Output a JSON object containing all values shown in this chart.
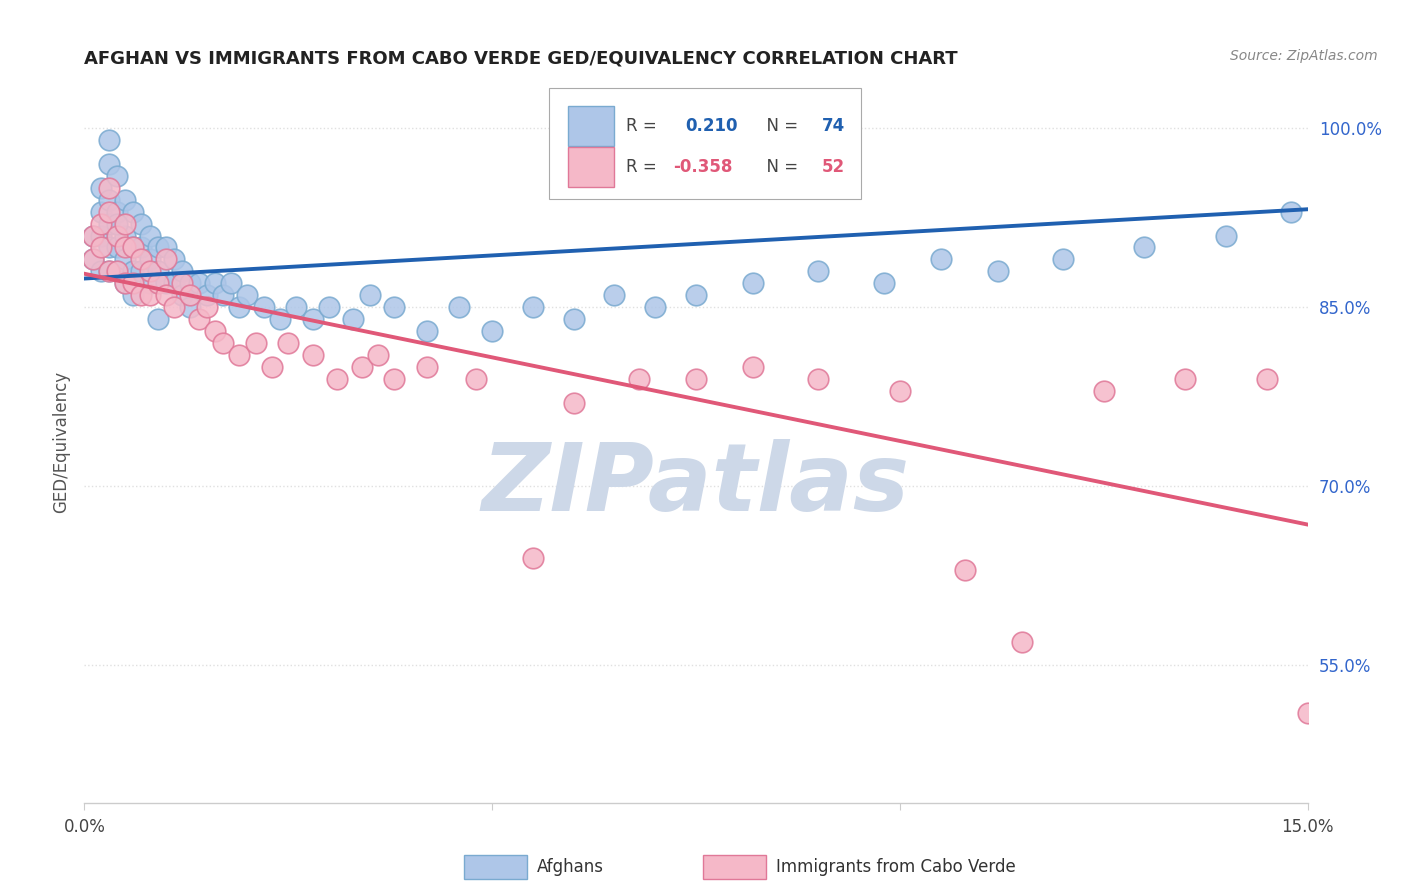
{
  "title": "AFGHAN VS IMMIGRANTS FROM CABO VERDE GED/EQUIVALENCY CORRELATION CHART",
  "source_text": "Source: ZipAtlas.com",
  "ylabel": "GED/Equivalency",
  "y_ticks": [
    "100.0%",
    "85.0%",
    "70.0%",
    "55.0%"
  ],
  "y_tick_vals": [
    1.0,
    0.85,
    0.7,
    0.55
  ],
  "x_range": [
    0.0,
    0.15
  ],
  "y_range": [
    0.435,
    1.04
  ],
  "legend_r_blue": "0.210",
  "legend_n_blue": "74",
  "legend_r_pink": "-0.358",
  "legend_n_pink": "52",
  "blue_color": "#aec6e8",
  "blue_edge_color": "#7aaad0",
  "pink_color": "#f5b8c8",
  "pink_edge_color": "#e07898",
  "blue_line_color": "#2060b0",
  "pink_line_color": "#e05878",
  "watermark_text": "ZIPatlas",
  "watermark_color": "#cdd8e8",
  "background_color": "#ffffff",
  "grid_color": "#e0e0e0",
  "title_color": "#222222",
  "source_color": "#888888",
  "tick_color": "#3366cc",
  "axis_label_color": "#555555",
  "blue_line_x": [
    0.0,
    0.15
  ],
  "blue_line_y": [
    0.874,
    0.932
  ],
  "pink_line_x": [
    0.0,
    0.15
  ],
  "pink_line_y": [
    0.878,
    0.668
  ],
  "blue_x": [
    0.001,
    0.001,
    0.002,
    0.002,
    0.002,
    0.002,
    0.003,
    0.003,
    0.003,
    0.003,
    0.003,
    0.004,
    0.004,
    0.004,
    0.004,
    0.005,
    0.005,
    0.005,
    0.005,
    0.006,
    0.006,
    0.006,
    0.007,
    0.007,
    0.007,
    0.008,
    0.008,
    0.008,
    0.009,
    0.009,
    0.01,
    0.01,
    0.011,
    0.011,
    0.012,
    0.012,
    0.013,
    0.013,
    0.014,
    0.015,
    0.016,
    0.017,
    0.018,
    0.019,
    0.02,
    0.022,
    0.024,
    0.026,
    0.028,
    0.03,
    0.033,
    0.035,
    0.038,
    0.042,
    0.046,
    0.05,
    0.055,
    0.06,
    0.065,
    0.07,
    0.075,
    0.082,
    0.09,
    0.098,
    0.105,
    0.112,
    0.12,
    0.13,
    0.14,
    0.148,
    0.003,
    0.004,
    0.006,
    0.009
  ],
  "blue_y": [
    0.91,
    0.89,
    0.95,
    0.93,
    0.91,
    0.88,
    0.97,
    0.94,
    0.92,
    0.9,
    0.88,
    0.96,
    0.93,
    0.9,
    0.88,
    0.94,
    0.91,
    0.89,
    0.87,
    0.93,
    0.9,
    0.88,
    0.92,
    0.9,
    0.88,
    0.91,
    0.89,
    0.87,
    0.9,
    0.88,
    0.9,
    0.87,
    0.89,
    0.87,
    0.88,
    0.86,
    0.87,
    0.85,
    0.87,
    0.86,
    0.87,
    0.86,
    0.87,
    0.85,
    0.86,
    0.85,
    0.84,
    0.85,
    0.84,
    0.85,
    0.84,
    0.86,
    0.85,
    0.83,
    0.85,
    0.83,
    0.85,
    0.84,
    0.86,
    0.85,
    0.86,
    0.87,
    0.88,
    0.87,
    0.89,
    0.88,
    0.89,
    0.9,
    0.91,
    0.93,
    0.99,
    0.92,
    0.86,
    0.84
  ],
  "pink_x": [
    0.001,
    0.001,
    0.002,
    0.002,
    0.003,
    0.003,
    0.003,
    0.004,
    0.004,
    0.005,
    0.005,
    0.005,
    0.006,
    0.006,
    0.007,
    0.007,
    0.008,
    0.008,
    0.009,
    0.01,
    0.01,
    0.011,
    0.012,
    0.013,
    0.014,
    0.015,
    0.016,
    0.017,
    0.019,
    0.021,
    0.023,
    0.025,
    0.028,
    0.031,
    0.034,
    0.036,
    0.038,
    0.042,
    0.048,
    0.055,
    0.06,
    0.068,
    0.075,
    0.082,
    0.09,
    0.1,
    0.108,
    0.115,
    0.125,
    0.135,
    0.145,
    0.15
  ],
  "pink_y": [
    0.91,
    0.89,
    0.92,
    0.9,
    0.95,
    0.93,
    0.88,
    0.91,
    0.88,
    0.92,
    0.9,
    0.87,
    0.9,
    0.87,
    0.89,
    0.86,
    0.88,
    0.86,
    0.87,
    0.89,
    0.86,
    0.85,
    0.87,
    0.86,
    0.84,
    0.85,
    0.83,
    0.82,
    0.81,
    0.82,
    0.8,
    0.82,
    0.81,
    0.79,
    0.8,
    0.81,
    0.79,
    0.8,
    0.79,
    0.64,
    0.77,
    0.79,
    0.79,
    0.8,
    0.79,
    0.78,
    0.63,
    0.57,
    0.78,
    0.79,
    0.79,
    0.51
  ]
}
